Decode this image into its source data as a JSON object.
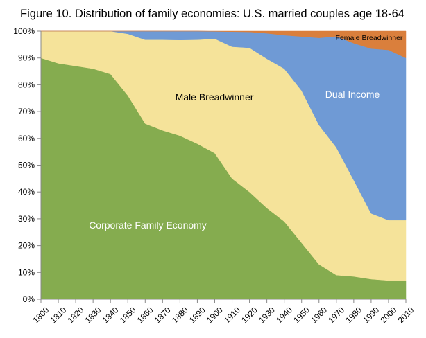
{
  "chart_data": {
    "type": "area",
    "stacked": true,
    "normalized": true,
    "title": "Figure 10. Distribution of family economies: U.S. married couples age 18-64",
    "xlabel": "",
    "ylabel": "",
    "ylim": [
      0,
      100
    ],
    "yticks": [
      "0%",
      "10%",
      "20%",
      "30%",
      "40%",
      "50%",
      "60%",
      "70%",
      "80%",
      "90%",
      "100%"
    ],
    "x": [
      1800,
      1810,
      1820,
      1830,
      1840,
      1850,
      1860,
      1870,
      1880,
      1890,
      1900,
      1910,
      1920,
      1930,
      1940,
      1950,
      1960,
      1970,
      1980,
      1990,
      2000,
      2010
    ],
    "xticks": [
      "1800",
      "1810",
      "1820",
      "1830",
      "1840",
      "1850",
      "1860",
      "1870",
      "1880",
      "1890",
      "1900",
      "1910",
      "1920",
      "1930",
      "1940",
      "1950",
      "1960",
      "1970",
      "1980",
      "1990",
      "2000",
      "2010"
    ],
    "series": [
      {
        "name": "Corporate Family Economy",
        "color": "#85ac4f",
        "label_color": "#ffffff",
        "values": [
          90,
          88,
          87,
          86,
          84,
          76,
          65.5,
          63,
          61,
          58,
          54.5,
          45,
          40,
          34,
          29,
          21,
          13,
          9,
          8.5,
          7.5,
          7,
          7
        ]
      },
      {
        "name": "Male Breadwinner",
        "color": "#f5e39a",
        "label_color": "#000000",
        "values": [
          10,
          12,
          13,
          14,
          16,
          23,
          31.3,
          33.8,
          35.7,
          38.8,
          42.7,
          49.2,
          53.8,
          55.7,
          57,
          56.8,
          52,
          47.6,
          35.9,
          24.5,
          22.5,
          22.5
        ]
      },
      {
        "name": "Dual Income",
        "color": "#6f9ad5",
        "label_color": "#ffffff",
        "values": [
          0,
          0,
          0,
          0,
          0,
          1,
          3.2,
          3.2,
          3.3,
          3.2,
          2.7,
          5.6,
          5.9,
          9.5,
          12.5,
          20.2,
          32.5,
          41.5,
          51.1,
          61.5,
          63.5,
          60.5
        ]
      },
      {
        "name": "Female Breadwinner",
        "color": "#da7f3c",
        "label_color": "#000000",
        "values": [
          0,
          0,
          0,
          0,
          0,
          0,
          0,
          0,
          0,
          0,
          0.1,
          0.2,
          0.3,
          0.8,
          1.5,
          2,
          2.5,
          1.9,
          4.5,
          6.5,
          7,
          10
        ]
      }
    ]
  }
}
